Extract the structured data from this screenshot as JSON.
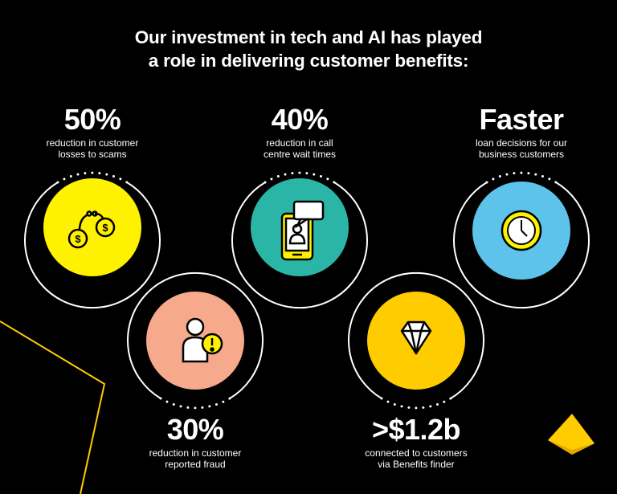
{
  "title": {
    "line1": "Our investment in tech and AI has played",
    "line2": "a role in delivering customer benefits:"
  },
  "stats": [
    {
      "value": "50%",
      "line1": "reduction in customer",
      "line2": "losses to scams",
      "icon": "handcuffs-money-icon",
      "circle_color": "#FFF200"
    },
    {
      "value": "40%",
      "line1": "reduction in call",
      "line2": "centre wait times",
      "icon": "phone-chat-icon",
      "circle_color": "#2BB5A6"
    },
    {
      "value": "Faster",
      "line1": "loan decisions for our",
      "line2": "business customers",
      "icon": "clock-icon",
      "circle_color": "#5EC3EB"
    },
    {
      "value": "30%",
      "line1": "reduction in customer",
      "line2": "reported fraud",
      "icon": "person-alert-icon",
      "circle_color": "#F6A98B"
    },
    {
      "value": ">$1.2b",
      "line1": "connected to customers",
      "line2": "via Benefits finder",
      "icon": "diamond-icon",
      "circle_color": "#FFCC00"
    }
  ],
  "colors": {
    "background": "#000000",
    "accent": "#FFCC00",
    "text": "#FFFFFF"
  },
  "logo": "commbank-diamond-logo"
}
